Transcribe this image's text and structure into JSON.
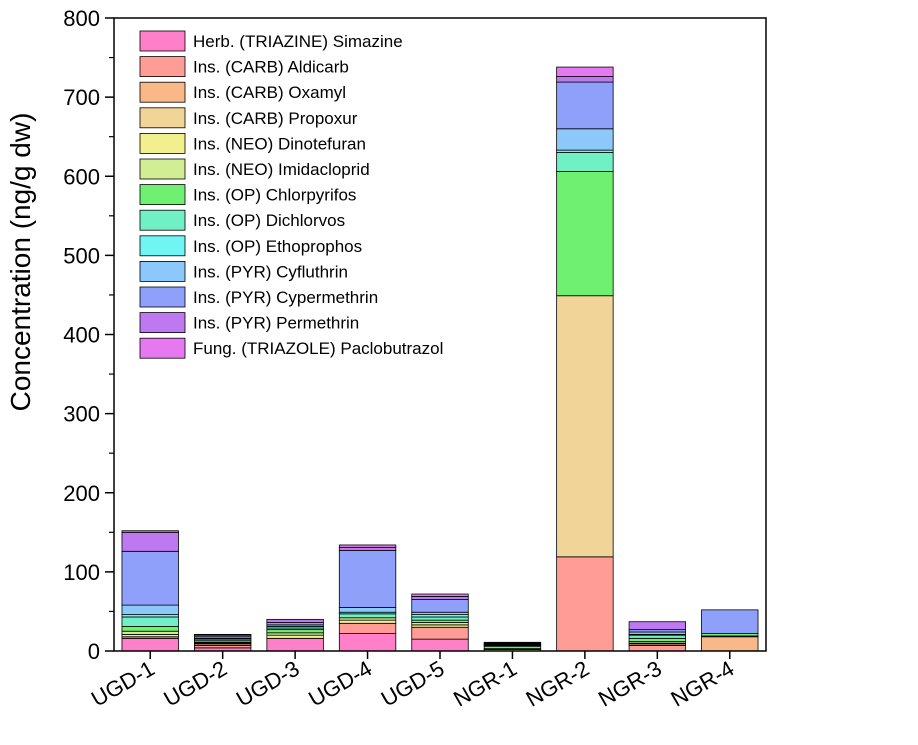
{
  "chart_data": {
    "type": "bar",
    "stacked": true,
    "title": "",
    "xlabel": "",
    "ylabel": "Concentration (ng/g dw)",
    "ylim": [
      0,
      800
    ],
    "yticks": [
      0,
      100,
      200,
      300,
      400,
      500,
      600,
      700,
      800
    ],
    "grid": false,
    "legend_position": "top-left",
    "categories": [
      "UGD-1",
      "UGD-2",
      "UGD-3",
      "UGD-4",
      "UGD-5",
      "NGR-1",
      "NGR-2",
      "NGR-3",
      "NGR-4"
    ],
    "series": [
      {
        "name": "Herb. (TRIAZINE) Simazine",
        "color": "#FF7FC8",
        "values": [
          16,
          4,
          16,
          22,
          15,
          0,
          0,
          0,
          0
        ]
      },
      {
        "name": "Ins. (CARB) Aldicarb",
        "color": "#FF9C95",
        "values": [
          2,
          3,
          0,
          13,
          15,
          0,
          119,
          7,
          0
        ]
      },
      {
        "name": "Ins. (CARB) Oxamyl",
        "color": "#F8B888",
        "values": [
          0,
          2,
          0,
          0,
          0,
          0,
          0,
          2,
          18
        ]
      },
      {
        "name": "Ins. (CARB) Propoxur",
        "color": "#F0D498",
        "values": [
          0,
          0,
          0,
          0,
          0,
          0,
          330,
          0,
          0
        ]
      },
      {
        "name": "Ins. (NEO) Dinotefuran",
        "color": "#F2F08E",
        "values": [
          3,
          1,
          4,
          4,
          3,
          2,
          0,
          1,
          0
        ]
      },
      {
        "name": "Ins. (NEO) Imidacloprid",
        "color": "#D2EE94",
        "values": [
          4,
          1,
          3,
          3,
          3,
          1,
          0,
          2,
          1
        ]
      },
      {
        "name": "Ins. (OP) Chlorpyrifos",
        "color": "#6FF070",
        "values": [
          6,
          2,
          4,
          0,
          3,
          3,
          157,
          4,
          3
        ]
      },
      {
        "name": "Ins. (OP) Dichlorvos",
        "color": "#70F0C4",
        "values": [
          12,
          2,
          2,
          5,
          4,
          1,
          24,
          4,
          0
        ]
      },
      {
        "name": "Ins. (OP) Ethoprophos",
        "color": "#70F4F4",
        "values": [
          3,
          1,
          2,
          2,
          3,
          1,
          3,
          1,
          0
        ]
      },
      {
        "name": "Ins. (PYR) Cyfluthrin",
        "color": "#8CC8FA",
        "values": [
          12,
          2,
          2,
          6,
          3,
          1,
          27,
          3,
          0
        ]
      },
      {
        "name": "Ins. (PYR) Cypermethrin",
        "color": "#8EA0FA",
        "values": [
          68,
          2,
          3,
          72,
          16,
          1,
          59,
          3,
          30
        ]
      },
      {
        "name": "Ins. (PYR) Permethrin",
        "color": "#BE78F0",
        "values": [
          24,
          1,
          4,
          4,
          4,
          1,
          7,
          10,
          0
        ]
      },
      {
        "name": "Fung. (TRIAZOLE) Paclobutrazol",
        "color": "#E678F0",
        "values": [
          2,
          0,
          0,
          3,
          3,
          0,
          12,
          0,
          0
        ]
      }
    ]
  }
}
